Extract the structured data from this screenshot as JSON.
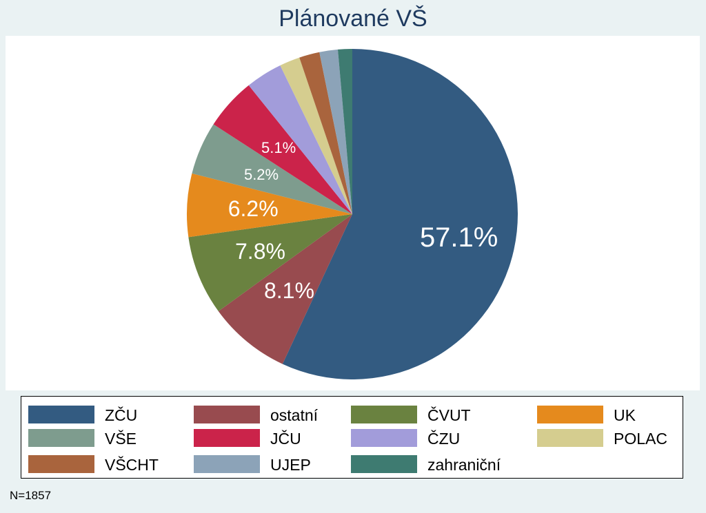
{
  "chart_data": {
    "type": "pie",
    "title": "Plánované VŠ",
    "note": "N=1857",
    "slices": [
      {
        "name": "ZČU",
        "value": 57.1,
        "label": "57.1%",
        "color": "#335b81"
      },
      {
        "name": "ostatní",
        "value": 8.1,
        "label": "8.1%",
        "color": "#984b4f"
      },
      {
        "name": "ČVUT",
        "value": 7.8,
        "label": "7.8%",
        "color": "#6a8240"
      },
      {
        "name": "UK",
        "value": 6.2,
        "label": "6.2%",
        "color": "#e58a1d"
      },
      {
        "name": "VŠE",
        "value": 5.2,
        "label": "5.2%",
        "color": "#7e9c8e"
      },
      {
        "name": "JČU",
        "value": 5.1,
        "label": "5.1%",
        "color": "#cb234a"
      },
      {
        "name": "ČZU",
        "value": 3.6,
        "label": "",
        "color": "#a29cda"
      },
      {
        "name": "POLAC",
        "value": 2.0,
        "label": "",
        "color": "#d5cd8f"
      },
      {
        "name": "VŠCHT",
        "value": 2.0,
        "label": "",
        "color": "#a9643d"
      },
      {
        "name": "UJEP",
        "value": 1.8,
        "label": "",
        "color": "#8ca3b8"
      },
      {
        "name": "zahraniční",
        "value": 1.4,
        "label": "",
        "color": "#3e7b71"
      }
    ],
    "legend_position": "bottom"
  }
}
